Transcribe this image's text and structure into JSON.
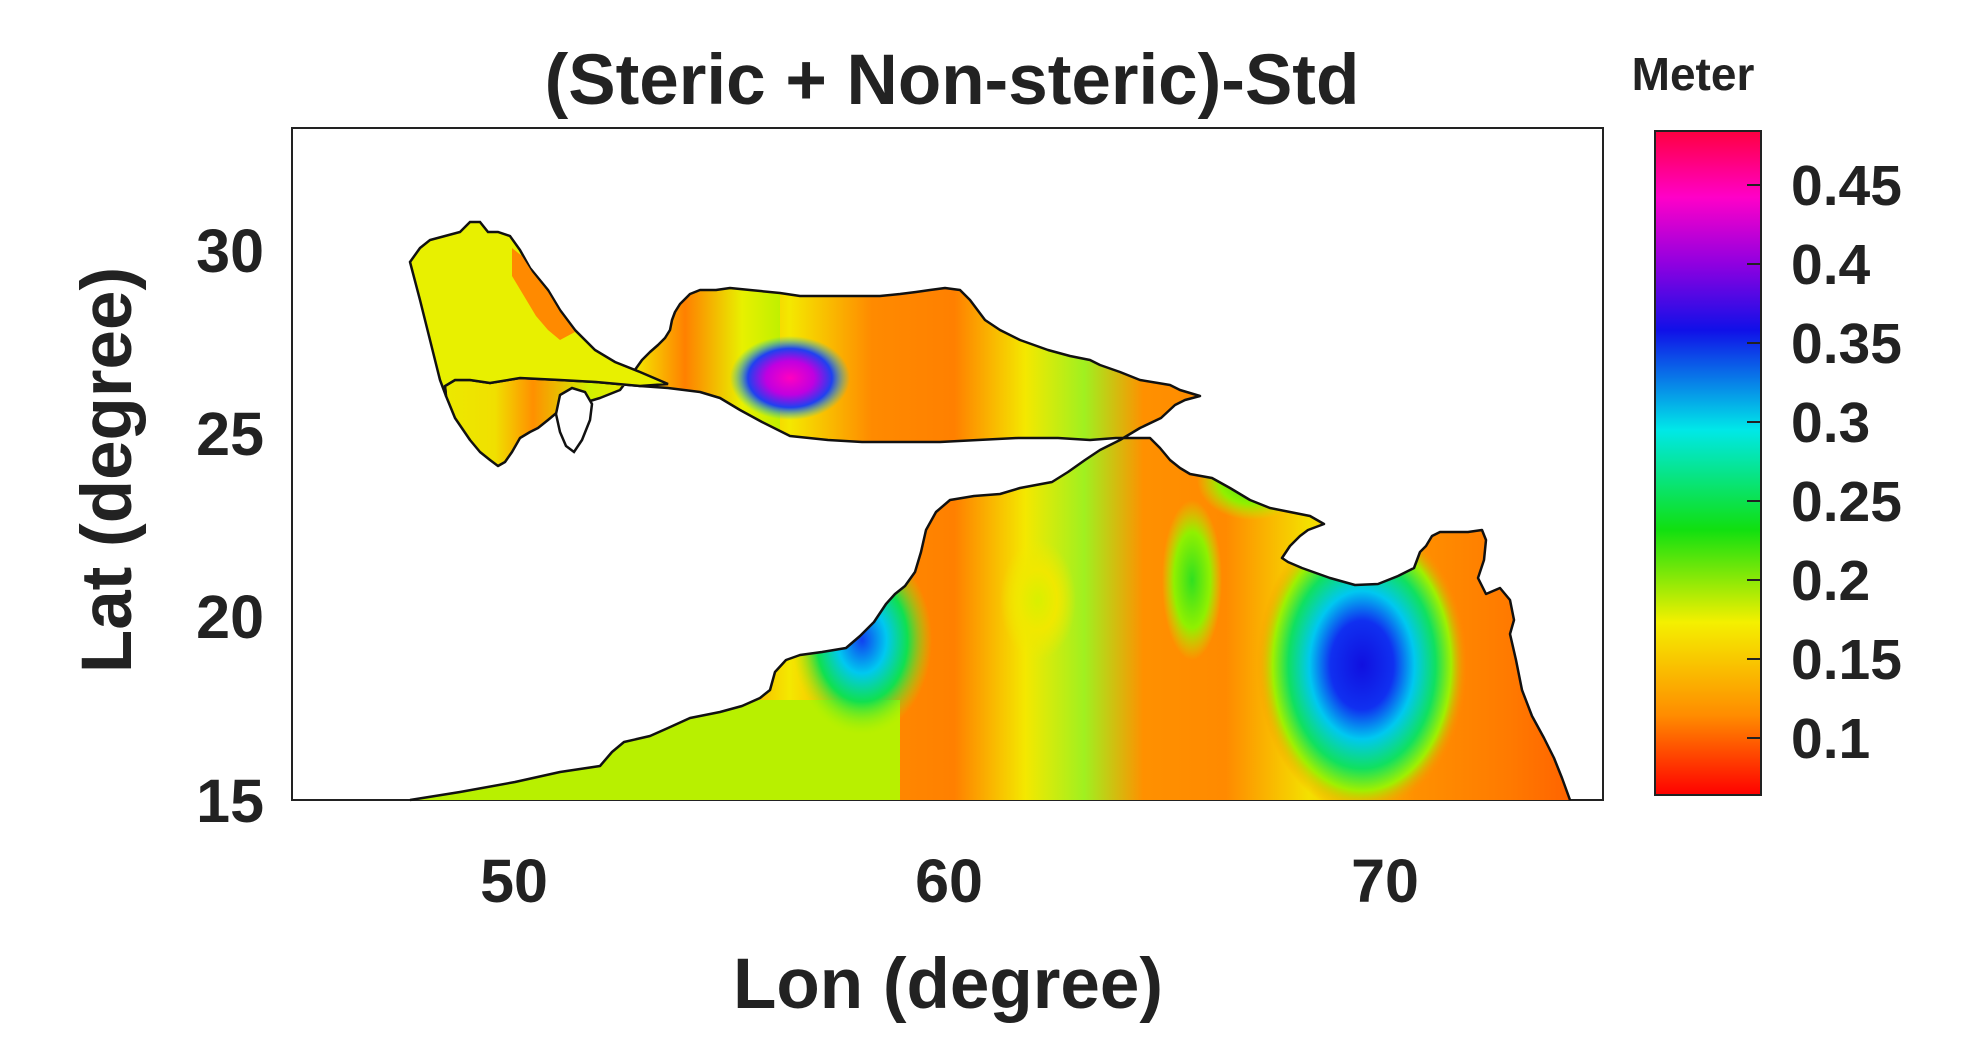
{
  "title": "(Steric + Non-steric)-Std",
  "colorbar_unit": "Meter",
  "xlabel": "Lon (degree)",
  "ylabel": "Lat (degree)",
  "x_ticks": [
    "50",
    "60",
    "70"
  ],
  "y_ticks": [
    "15",
    "20",
    "25",
    "30"
  ],
  "colorbar_ticks": [
    "0.45",
    "0.4",
    "0.35",
    "0.3",
    "0.25",
    "0.2",
    "0.15",
    "0.1"
  ],
  "colors": {
    "low": "#ff0000",
    "orange": "#ff8c00",
    "yellow": "#f4f000",
    "yellowgreen": "#c8f000",
    "green": "#10e010",
    "cyan": "#00e8e8",
    "blue": "#1010e8",
    "purple": "#9000e0",
    "magenta": "#ff00c8",
    "high": "#ff0040",
    "frame": "#222222"
  },
  "chart_data": {
    "type": "heatmap",
    "title": "(Steric + Non-steric)-Std",
    "xlabel": "Lon (degree)",
    "ylabel": "Lat (degree)",
    "xlim": [
      45,
      75
    ],
    "ylim": [
      15,
      33
    ],
    "colorbar": {
      "label": "Meter",
      "range": [
        0.05,
        0.49
      ],
      "ticks": [
        0.1,
        0.15,
        0.2,
        0.25,
        0.3,
        0.35,
        0.4,
        0.45
      ]
    },
    "features": [
      {
        "name": "maximum",
        "lon": 56.6,
        "lat": 26.6,
        "value": 0.45
      },
      {
        "name": "maximum",
        "lon": 69.5,
        "lat": 18.5,
        "value": 0.35
      },
      {
        "name": "maximum",
        "lon": 58.3,
        "lat": 19.3,
        "value": 0.33
      },
      {
        "name": "minimum",
        "lon": 53.0,
        "lat": 25.0,
        "value": 0.1
      },
      {
        "name": "minimum",
        "lon": 60.5,
        "lat": 20.0,
        "value": 0.1
      },
      {
        "name": "minimum",
        "lon": 64.5,
        "lat": 20.0,
        "value": 0.1
      },
      {
        "name": "minimum",
        "lon": 72.5,
        "lat": 19.0,
        "value": 0.1
      }
    ]
  }
}
